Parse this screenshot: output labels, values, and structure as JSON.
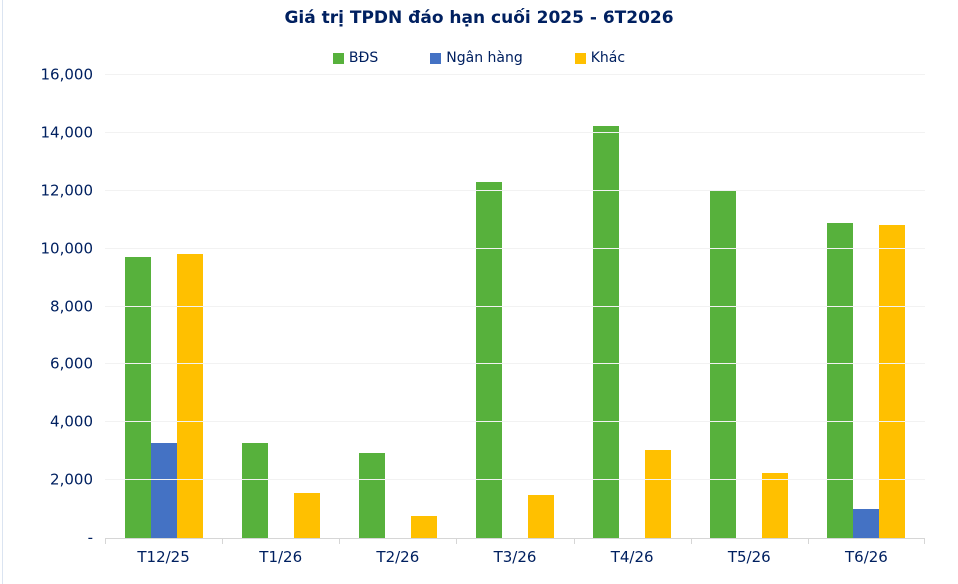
{
  "title": "Giá trị TPDN đáo hạn cuối 2025 - 6T2026",
  "colors": {
    "text_navy": "#002060",
    "gridline": "#f2f2f2",
    "axis_line": "#d6d6d6",
    "left_edge_line": "#dbe4f1",
    "background": "#ffffff"
  },
  "chart_data": {
    "type": "bar",
    "grouping": "grouped",
    "title": "Giá trị TPDN đáo hạn cuối 2025 - 6T2026",
    "categories": [
      "T12/25",
      "T1/26",
      "T2/26",
      "T3/26",
      "T4/26",
      "T5/26",
      "T6/26"
    ],
    "series": [
      {
        "name": "BĐS",
        "color": "#57B13C",
        "values": [
          9700,
          3300,
          2950,
          12300,
          14250,
          12000,
          10900
        ]
      },
      {
        "name": "Ngân hàng",
        "color": "#4472C4",
        "values": [
          3300,
          0,
          0,
          0,
          0,
          0,
          1000
        ]
      },
      {
        "name": "Khác",
        "color": "#FFC000",
        "values": [
          9800,
          1550,
          750,
          1500,
          3050,
          2250,
          10800
        ]
      }
    ],
    "xlabel": "",
    "ylabel": "",
    "ylim": [
      0,
      16000
    ],
    "y_tick_interval": 2000,
    "y_tick_labels": [
      "-",
      "2,000",
      "4,000",
      "6,000",
      "8,000",
      "10,000",
      "12,000",
      "14,000",
      "16,000"
    ],
    "legend_position": "top-center",
    "grid": true
  }
}
